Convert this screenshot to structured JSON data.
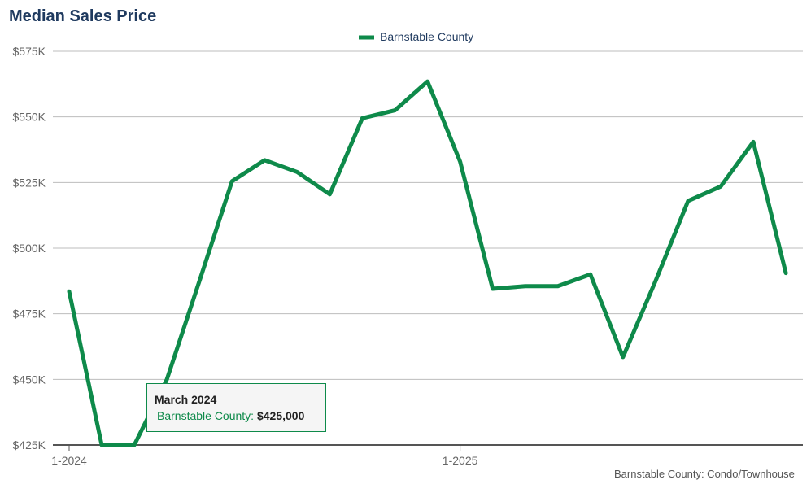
{
  "chart_data": {
    "type": "line",
    "title": "Median Sales Price",
    "x_tick_labels": [
      "1-2024",
      "1-2025"
    ],
    "x": [
      "1-2024",
      "2-2024",
      "3-2024",
      "4-2024",
      "5-2024",
      "6-2024",
      "7-2024",
      "8-2024",
      "9-2024",
      "10-2024",
      "11-2024",
      "12-2024",
      "1-2025",
      "2-2025",
      "3-2025",
      "4-2025",
      "5-2025",
      "6-2025",
      "7-2025",
      "8-2025",
      "9-2025",
      "10-2025",
      "11-2025"
    ],
    "series": [
      {
        "name": "Barnstable County",
        "color": "#0e8a4a",
        "values": [
          483500,
          425000,
          425000,
          450000,
          487500,
          525500,
          533500,
          529000,
          520500,
          549500,
          552500,
          563500,
          533000,
          484500,
          485500,
          485500,
          490000,
          458500,
          487500,
          518000,
          523500,
          540500,
          490500
        ]
      }
    ],
    "y_ticks": [
      425000,
      450000,
      475000,
      500000,
      525000,
      550000,
      575000
    ],
    "y_tick_labels": [
      "$425K",
      "$450K",
      "$475K",
      "$500K",
      "$525K",
      "$550K",
      "$575K"
    ],
    "ylim": [
      425000,
      575000
    ],
    "grid": true,
    "legend_position": "top-center",
    "tooltip": {
      "date": "March 2024",
      "series_label": "Barnstable County:",
      "value": "$425,000"
    },
    "footer_note": "Barnstable County: Condo/Townhouse"
  }
}
